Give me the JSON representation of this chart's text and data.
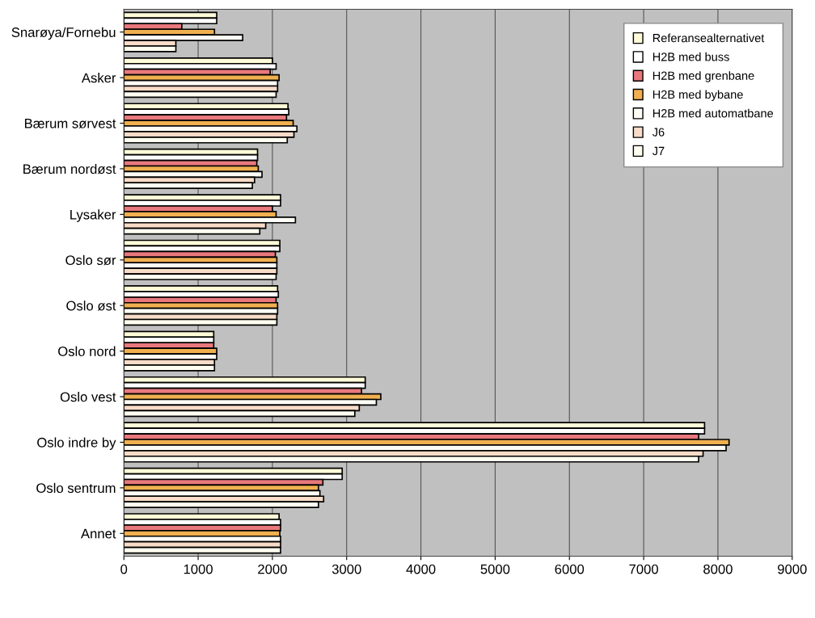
{
  "chart_data": {
    "type": "bar",
    "orientation": "horizontal",
    "categories": [
      "Snarøya/Fornebu",
      "Asker",
      "Bærum sørvest",
      "Bærum nordøst",
      "Lysaker",
      "Oslo sør",
      "Oslo øst",
      "Oslo nord",
      "Oslo vest",
      "Oslo indre by",
      "Oslo sentrum",
      "Annet"
    ],
    "series": [
      {
        "name": "Referansealternativet",
        "color": "#fffbd8",
        "values": [
          1250,
          2000,
          2210,
          1800,
          2110,
          2100,
          2070,
          1210,
          3250,
          7820,
          2940,
          2090
        ]
      },
      {
        "name": "H2B med buss",
        "color": "#ffffff",
        "values": [
          1250,
          2050,
          2220,
          1800,
          2110,
          2100,
          2080,
          1210,
          3250,
          7820,
          2940,
          2110
        ]
      },
      {
        "name": "H2B med grenbane",
        "color": "#e8787c",
        "values": [
          780,
          1970,
          2190,
          1790,
          2000,
          2040,
          2050,
          1210,
          3200,
          7740,
          2680,
          2110
        ]
      },
      {
        "name": "H2B med bybane",
        "color": "#f0b050",
        "values": [
          1220,
          2090,
          2280,
          1810,
          2050,
          2060,
          2070,
          1250,
          3460,
          8150,
          2620,
          2100
        ]
      },
      {
        "name": "H2B med automatbane",
        "color": "#fffcf6",
        "values": [
          1600,
          2070,
          2330,
          1860,
          2310,
          2060,
          2070,
          1250,
          3400,
          8110,
          2640,
          2110
        ]
      },
      {
        "name": "J6",
        "color": "#f8dcc8",
        "values": [
          700,
          2070,
          2290,
          1760,
          1910,
          2060,
          2060,
          1220,
          3170,
          7800,
          2690,
          2110
        ]
      },
      {
        "name": "J7",
        "color": "#fffef0",
        "values": [
          700,
          2050,
          2200,
          1730,
          1830,
          2050,
          2060,
          1220,
          3110,
          7740,
          2620,
          2110
        ]
      }
    ],
    "xlim": [
      0,
      9000
    ],
    "xticks": [
      0,
      1000,
      2000,
      3000,
      4000,
      5000,
      6000,
      7000,
      8000,
      9000
    ],
    "grid": "x",
    "legend": "top right"
  }
}
